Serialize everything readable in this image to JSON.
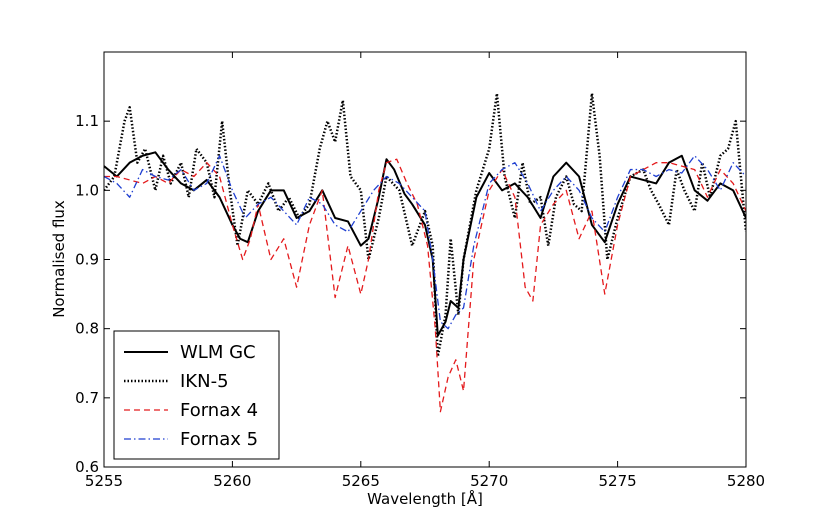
{
  "chart_data": {
    "type": "line",
    "title": "",
    "xlabel": "Wavelength [Å]",
    "ylabel": "Normalised flux",
    "xlim": [
      5255,
      5280
    ],
    "ylim": [
      0.6,
      1.2
    ],
    "xticks": [
      5255,
      5260,
      5265,
      5270,
      5275,
      5280
    ],
    "xtick_labels": [
      "5255",
      "5260",
      "5265",
      "5270",
      "5275",
      "5280"
    ],
    "yticks": [
      0.6,
      0.7,
      0.8,
      0.9,
      1.0,
      1.1
    ],
    "ytick_labels": [
      "0.6",
      "0.7",
      "0.8",
      "0.9",
      "1.0",
      "1.1"
    ],
    "grid": false,
    "legend_position": "lower-left",
    "series": [
      {
        "name": "WLM GC",
        "color": "#000000",
        "style": "solid",
        "x": [
          5255.0,
          5255.5,
          5256.0,
          5256.5,
          5257.0,
          5257.5,
          5258.0,
          5258.5,
          5259.0,
          5259.5,
          5260.0,
          5260.3,
          5260.6,
          5261.0,
          5261.5,
          5262.0,
          5262.5,
          5263.0,
          5263.5,
          5264.0,
          5264.5,
          5265.0,
          5265.3,
          5265.7,
          5266.0,
          5266.3,
          5266.7,
          5267.0,
          5267.5,
          5267.8,
          5268.0,
          5268.3,
          5268.5,
          5268.8,
          5269.0,
          5269.5,
          5270.0,
          5270.5,
          5271.0,
          5271.5,
          5272.0,
          5272.5,
          5273.0,
          5273.5,
          5274.0,
          5274.5,
          5275.0,
          5275.5,
          5276.0,
          5276.5,
          5277.0,
          5277.5,
          5278.0,
          5278.5,
          5279.0,
          5279.5,
          5280.0
        ],
        "values": [
          1.035,
          1.02,
          1.04,
          1.05,
          1.055,
          1.03,
          1.01,
          1.0,
          1.015,
          0.99,
          0.95,
          0.93,
          0.925,
          0.97,
          1.0,
          1.0,
          0.96,
          0.97,
          1.0,
          0.96,
          0.955,
          0.92,
          0.93,
          0.99,
          1.045,
          1.03,
          0.995,
          0.98,
          0.95,
          0.9,
          0.79,
          0.81,
          0.84,
          0.83,
          0.9,
          0.99,
          1.025,
          1.0,
          1.01,
          0.99,
          0.96,
          1.02,
          1.04,
          1.02,
          0.95,
          0.925,
          0.98,
          1.02,
          1.015,
          1.01,
          1.04,
          1.05,
          1.0,
          0.985,
          1.01,
          1.0,
          0.96
        ]
      },
      {
        "name": "IKN-5",
        "color": "#000000",
        "style": "dotted",
        "x": [
          5255.0,
          5255.4,
          5255.8,
          5256.0,
          5256.3,
          5256.6,
          5257.0,
          5257.3,
          5257.6,
          5258.0,
          5258.3,
          5258.6,
          5259.0,
          5259.3,
          5259.6,
          5259.9,
          5260.2,
          5260.6,
          5261.0,
          5261.4,
          5261.8,
          5262.2,
          5262.6,
          5263.0,
          5263.4,
          5263.7,
          5264.0,
          5264.3,
          5264.6,
          5265.0,
          5265.3,
          5265.7,
          5266.0,
          5266.5,
          5267.0,
          5267.5,
          5267.8,
          5268.0,
          5268.3,
          5268.5,
          5268.8,
          5269.0,
          5269.5,
          5270.0,
          5270.3,
          5270.6,
          5271.0,
          5271.3,
          5271.6,
          5272.0,
          5272.3,
          5272.6,
          5273.0,
          5273.3,
          5273.6,
          5274.0,
          5274.3,
          5274.6,
          5275.0,
          5275.5,
          5276.0,
          5276.3,
          5276.6,
          5277.0,
          5277.3,
          5277.6,
          5278.0,
          5278.3,
          5278.6,
          5279.0,
          5279.3,
          5279.6,
          5280.0
        ],
        "values": [
          1.0,
          1.02,
          1.1,
          1.12,
          1.04,
          1.06,
          1.0,
          1.05,
          1.01,
          1.04,
          0.99,
          1.06,
          1.04,
          0.99,
          1.1,
          1.0,
          0.92,
          1.0,
          0.98,
          1.01,
          0.97,
          0.99,
          0.96,
          0.98,
          1.06,
          1.1,
          1.07,
          1.13,
          1.02,
          1.0,
          0.9,
          0.96,
          1.02,
          1.0,
          0.92,
          0.97,
          0.92,
          0.76,
          0.82,
          0.93,
          0.82,
          0.9,
          1.0,
          1.06,
          1.14,
          1.02,
          0.96,
          1.04,
          0.98,
          0.99,
          0.92,
          0.99,
          1.02,
          0.98,
          0.97,
          1.14,
          1.05,
          0.9,
          0.96,
          1.02,
          1.03,
          1.0,
          0.98,
          0.95,
          1.03,
          1.0,
          0.97,
          1.04,
          0.99,
          1.05,
          1.06,
          1.1,
          0.94
        ]
      },
      {
        "name": "Fornax 4",
        "color": "#e41a1c",
        "style": "dashed",
        "x": [
          5255.0,
          5255.5,
          5256.0,
          5256.5,
          5257.0,
          5257.5,
          5258.0,
          5258.5,
          5259.0,
          5259.5,
          5260.0,
          5260.4,
          5260.7,
          5261.0,
          5261.5,
          5262.0,
          5262.5,
          5263.0,
          5263.5,
          5264.0,
          5264.5,
          5265.0,
          5265.3,
          5265.7,
          5266.0,
          5266.4,
          5266.8,
          5267.2,
          5267.6,
          5267.9,
          5268.1,
          5268.4,
          5268.7,
          5269.0,
          5269.4,
          5270.0,
          5270.5,
          5271.0,
          5271.4,
          5271.7,
          5272.0,
          5272.5,
          5273.0,
          5273.5,
          5274.0,
          5274.5,
          5275.0,
          5275.5,
          5276.0,
          5276.5,
          5277.0,
          5277.5,
          5278.0,
          5278.5,
          5279.0,
          5279.5,
          5280.0
        ],
        "values": [
          1.02,
          1.02,
          1.015,
          1.01,
          1.02,
          1.01,
          1.03,
          1.02,
          1.04,
          1.02,
          0.95,
          0.9,
          0.93,
          0.98,
          0.9,
          0.93,
          0.86,
          0.95,
          1.0,
          0.845,
          0.92,
          0.85,
          0.9,
          1.0,
          1.04,
          1.045,
          1.01,
          0.98,
          0.92,
          0.8,
          0.68,
          0.73,
          0.755,
          0.71,
          0.9,
          1.0,
          1.03,
          0.99,
          0.86,
          0.84,
          0.95,
          0.98,
          1.0,
          0.93,
          0.97,
          0.85,
          0.95,
          1.02,
          1.03,
          1.04,
          1.04,
          1.035,
          1.03,
          0.99,
          1.03,
          1.01,
          0.97
        ]
      },
      {
        "name": "Fornax 5",
        "color": "#1f3fd1",
        "style": "dashdot",
        "x": [
          5255.0,
          5255.5,
          5256.0,
          5256.5,
          5257.0,
          5257.5,
          5258.0,
          5258.5,
          5259.0,
          5259.5,
          5260.0,
          5260.5,
          5261.0,
          5261.5,
          5262.0,
          5262.5,
          5263.0,
          5263.5,
          5264.0,
          5264.5,
          5265.0,
          5265.5,
          5266.0,
          5266.5,
          5267.0,
          5267.5,
          5267.8,
          5268.1,
          5268.4,
          5268.7,
          5269.0,
          5269.4,
          5270.0,
          5270.5,
          5271.0,
          5271.5,
          5272.0,
          5272.5,
          5273.0,
          5273.5,
          5274.0,
          5274.5,
          5275.0,
          5275.5,
          5276.0,
          5276.5,
          5277.0,
          5277.5,
          5278.0,
          5278.5,
          5279.0,
          5279.5,
          5280.0
        ],
        "values": [
          1.02,
          1.01,
          0.99,
          1.03,
          1.02,
          1.015,
          1.03,
          1.0,
          1.01,
          1.05,
          1.0,
          0.96,
          0.98,
          0.99,
          0.97,
          0.95,
          0.99,
          0.98,
          0.95,
          0.94,
          0.97,
          1.0,
          1.02,
          1.01,
          0.99,
          0.97,
          0.9,
          0.81,
          0.8,
          0.82,
          0.83,
          0.92,
          1.01,
          1.03,
          1.04,
          1.01,
          0.97,
          1.0,
          1.02,
          1.0,
          0.96,
          0.94,
          0.99,
          1.03,
          1.03,
          1.02,
          1.03,
          1.025,
          1.05,
          1.03,
          1.0,
          1.04,
          1.02
        ]
      }
    ]
  }
}
